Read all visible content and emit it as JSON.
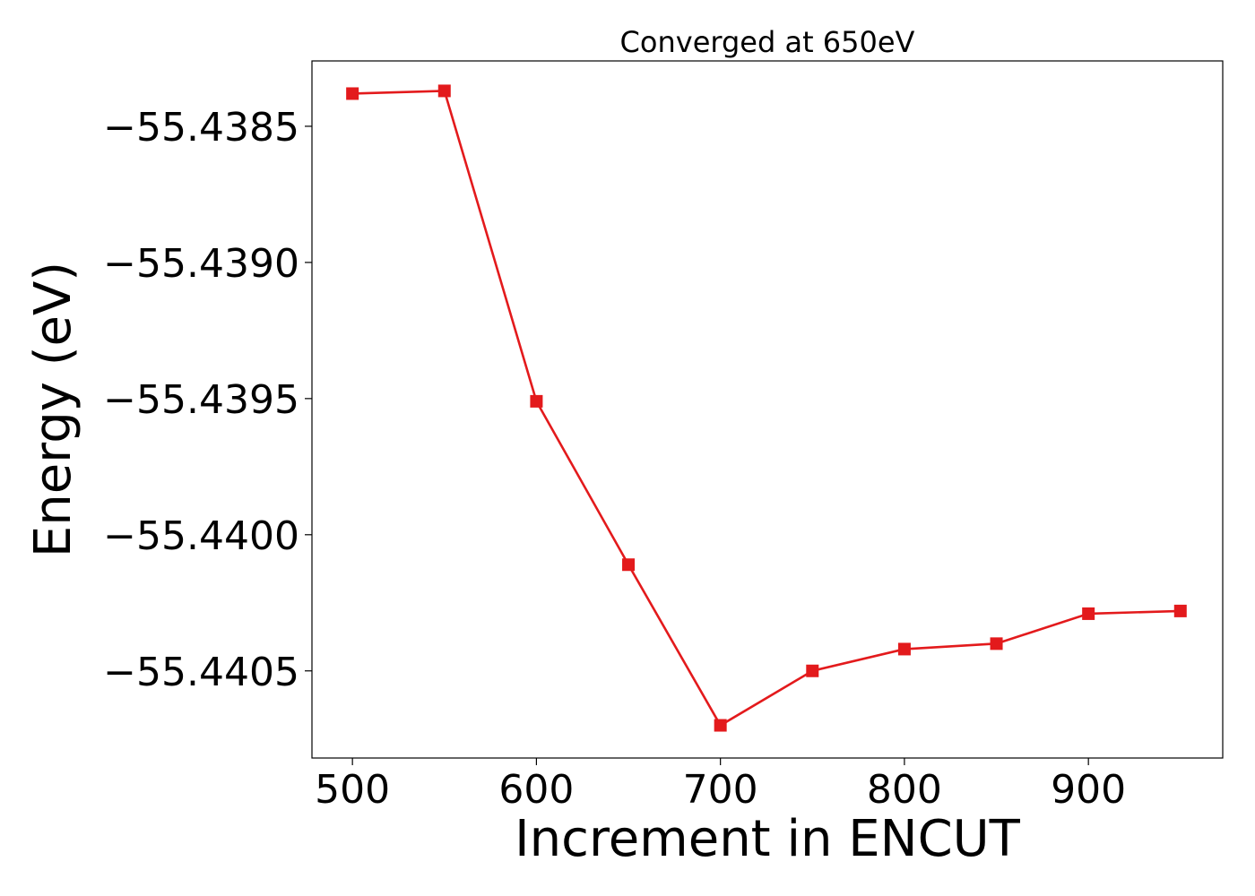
{
  "chart_data": {
    "type": "line",
    "title": "Converged at 650eV",
    "xlabel": "Increment in ENCUT",
    "ylabel": "Energy (eV)",
    "xlim": [
      478,
      973
    ],
    "ylim": [
      -55.44082,
      -55.43826
    ],
    "xticks": [
      500,
      600,
      700,
      800,
      900
    ],
    "xtick_labels": [
      "500",
      "600",
      "700",
      "800",
      "900"
    ],
    "yticks": [
      -55.4385,
      -55.439,
      -55.4395,
      -55.44,
      -55.4405
    ],
    "ytick_labels": [
      "−55.4385",
      "−55.4390",
      "−55.4395",
      "−55.4400",
      "−55.4405"
    ],
    "grid": false,
    "marker": "square",
    "color": "#e31a1c",
    "series": [
      {
        "x": [
          500,
          550,
          600,
          650,
          700,
          750,
          800,
          850,
          900,
          950
        ],
        "y": [
          -55.43838,
          -55.43837,
          -55.43951,
          -55.44011,
          -55.4407,
          -55.4405,
          -55.44042,
          -55.4404,
          -55.44029,
          -55.44028
        ]
      }
    ]
  }
}
